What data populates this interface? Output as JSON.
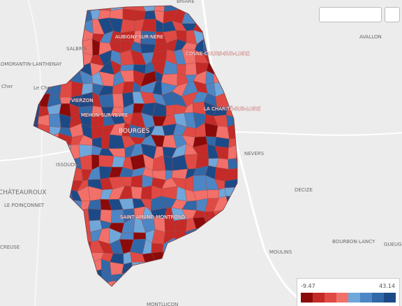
{
  "places": [
    "BRIARE",
    "AVALLON",
    "SALBRIS",
    "ROMORANTIN-LANTHENAY",
    "Cher",
    "Le Cher",
    "AUBIGNY-SUR-NÈRE",
    "COSNE-COURS-SUR-LOIRE",
    "VIERZON",
    "MEHUN-SUR-YÈVRE",
    "LA CHARITÉ-SUR-LOIRE",
    "BOURGES",
    "NEVERS",
    "ISSOUDUN",
    "CHÂTEAUROUX",
    "LE POINÇONNET",
    "DECIZE",
    "SAINT-AMAND-MONTROND",
    "CREUSE",
    "MOULINS",
    "BOURBON-LANCY",
    "GUEUGNON",
    "MONTLUÇON"
  ],
  "legend": {
    "min": -9.47,
    "max": 43.14,
    "colors": [
      "#8b0a0a",
      "#c42a27",
      "#e04a44",
      "#f2706a",
      "#6fa7da",
      "#4d86c5",
      "#3168a8",
      "#1c4a87"
    ]
  }
}
